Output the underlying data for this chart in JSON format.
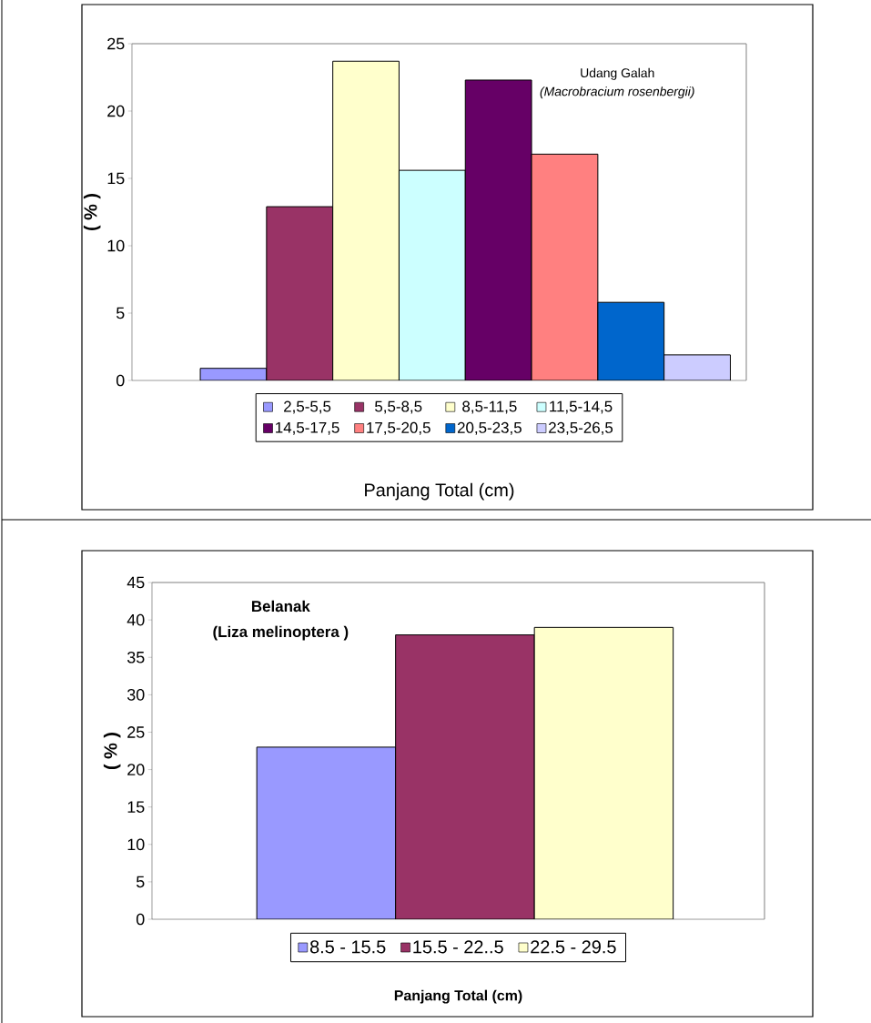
{
  "chart_data": [
    {
      "type": "bar",
      "ylabel": "( % )",
      "xlabel": "Panjang Total (cm)",
      "categories": [
        null
      ],
      "ylim": [
        0,
        25
      ],
      "yticks": [
        0,
        5,
        10,
        15,
        20,
        25
      ],
      "legend": "bottom",
      "tick_labels": "y",
      "annotations": [
        "Udang Galah",
        "(Macrobracium rosenbergii)"
      ],
      "series": [
        {
          "name": "2,5-5,5",
          "color": "#9999ff",
          "values": [
            0.9
          ]
        },
        {
          "name": "5,5-8,5",
          "color": "#993366",
          "values": [
            12.9
          ]
        },
        {
          "name": "8,5-11,5",
          "color": "#ffffcc",
          "values": [
            23.7
          ]
        },
        {
          "name": "11,5-14,5",
          "color": "#ccffff",
          "values": [
            15.6
          ]
        },
        {
          "name": "14,5-17,5",
          "color": "#660066",
          "values": [
            22.3
          ]
        },
        {
          "name": "17,5-20,5",
          "color": "#ff8080",
          "values": [
            16.8
          ]
        },
        {
          "name": "20,5-23,5",
          "color": "#0066cc",
          "values": [
            5.8
          ]
        },
        {
          "name": "23,5-26,5",
          "color": "#ccccff",
          "values": [
            1.9
          ]
        }
      ]
    },
    {
      "type": "bar",
      "ylabel": "( % )",
      "xlabel": "Panjang Total (cm)",
      "categories": [
        null
      ],
      "ylim": [
        0,
        45
      ],
      "yticks": [
        0,
        5,
        10,
        15,
        20,
        25,
        30,
        35,
        40,
        45
      ],
      "legend": "bottom",
      "tick_labels": "y",
      "annotations": [
        "Belanak",
        "(Liza melinoptera )"
      ],
      "series": [
        {
          "name": "8.5 - 15.5",
          "color": "#9999ff",
          "values": [
            23
          ]
        },
        {
          "name": "15.5 - 22..5",
          "color": "#993366",
          "values": [
            38
          ]
        },
        {
          "name": "22.5 - 29.5",
          "color": "#ffffcc",
          "values": [
            39
          ]
        }
      ]
    }
  ]
}
